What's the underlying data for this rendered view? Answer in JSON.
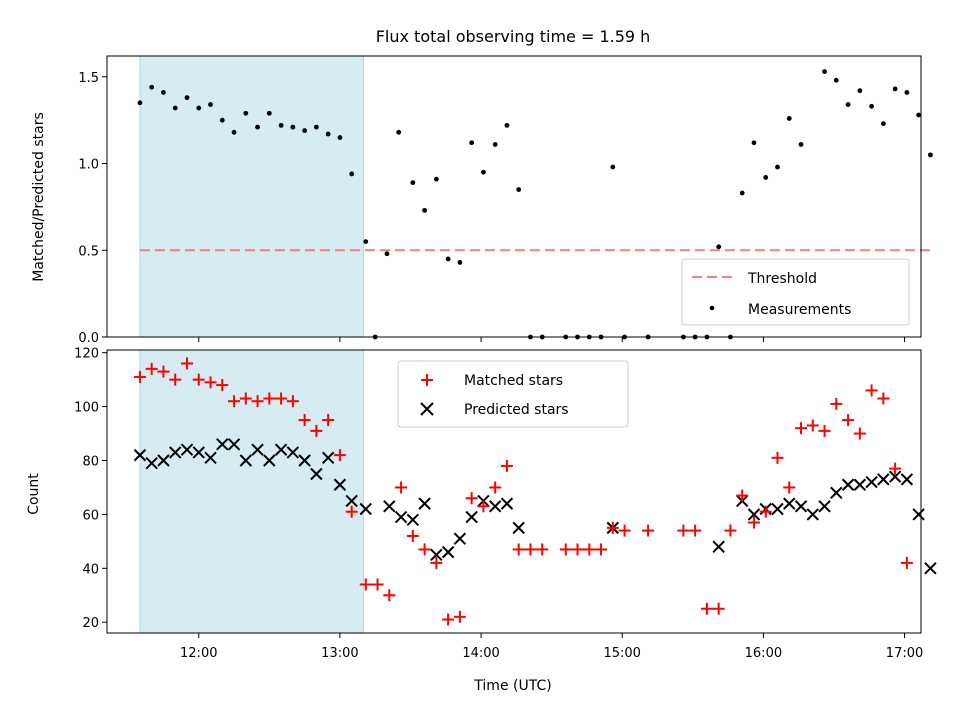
{
  "chart_data": [
    {
      "type": "scatter",
      "title": "Flux total observing time = 1.59 h",
      "ylabel": "Matched/Predicted stars",
      "xlabel": "",
      "xlim": [
        "11:21",
        "17:07"
      ],
      "ylim": [
        0,
        1.62
      ],
      "yticks": [
        "0.0",
        "0.5",
        "1.0",
        "1.5"
      ],
      "grid": false,
      "legend_position": "lower-right",
      "shaded_span": [
        "11:35",
        "13:10"
      ],
      "threshold": {
        "name": "Threshold",
        "value": 0.5,
        "style": "dashed",
        "color": "#f08080"
      },
      "series": [
        {
          "name": "Measurements",
          "color": "#000000",
          "marker": "dot",
          "points": [
            [
              "11:35",
              1.35
            ],
            [
              "11:40",
              1.44
            ],
            [
              "11:45",
              1.41
            ],
            [
              "11:50",
              1.32
            ],
            [
              "11:55",
              1.38
            ],
            [
              "12:00",
              1.32
            ],
            [
              "12:05",
              1.34
            ],
            [
              "12:10",
              1.25
            ],
            [
              "12:15",
              1.18
            ],
            [
              "12:20",
              1.29
            ],
            [
              "12:25",
              1.21
            ],
            [
              "12:30",
              1.29
            ],
            [
              "12:35",
              1.22
            ],
            [
              "12:40",
              1.21
            ],
            [
              "12:45",
              1.19
            ],
            [
              "12:50",
              1.21
            ],
            [
              "12:55",
              1.17
            ],
            [
              "13:00",
              1.15
            ],
            [
              "13:05",
              0.94
            ],
            [
              "13:11",
              0.55
            ],
            [
              "13:15",
              0.0
            ],
            [
              "13:20",
              0.48
            ],
            [
              "13:25",
              1.18
            ],
            [
              "13:31",
              0.89
            ],
            [
              "13:36",
              0.73
            ],
            [
              "13:41",
              0.91
            ],
            [
              "13:46",
              0.45
            ],
            [
              "13:51",
              0.43
            ],
            [
              "13:56",
              1.12
            ],
            [
              "14:01",
              0.95
            ],
            [
              "14:06",
              1.11
            ],
            [
              "14:11",
              1.22
            ],
            [
              "14:16",
              0.85
            ],
            [
              "14:21",
              0.0
            ],
            [
              "14:26",
              0.0
            ],
            [
              "14:36",
              0.0
            ],
            [
              "14:41",
              0.0
            ],
            [
              "14:46",
              0.0
            ],
            [
              "14:51",
              0.0
            ],
            [
              "14:56",
              0.98
            ],
            [
              "15:01",
              0.0
            ],
            [
              "15:11",
              0.0
            ],
            [
              "15:26",
              0.0
            ],
            [
              "15:31",
              0.0
            ],
            [
              "15:36",
              0.0
            ],
            [
              "15:41",
              0.52
            ],
            [
              "15:46",
              0.0
            ],
            [
              "15:51",
              0.83
            ],
            [
              "15:56",
              1.12
            ],
            [
              "16:01",
              0.92
            ],
            [
              "16:06",
              0.98
            ],
            [
              "16:11",
              1.26
            ],
            [
              "16:16",
              1.11
            ],
            [
              "16:26",
              1.53
            ],
            [
              "16:31",
              1.48
            ],
            [
              "16:36",
              1.34
            ],
            [
              "16:41",
              1.42
            ],
            [
              "16:46",
              1.33
            ],
            [
              "16:51",
              1.23
            ],
            [
              "16:56",
              1.43
            ],
            [
              "17:01",
              1.41
            ],
            [
              "17:06",
              1.28
            ],
            [
              "17:11",
              1.05
            ]
          ]
        }
      ]
    },
    {
      "type": "scatter",
      "title": "",
      "ylabel": "Count",
      "xlabel": "Time (UTC)",
      "xlim": [
        "11:21",
        "17:07"
      ],
      "ylim": [
        16,
        121
      ],
      "xticks": [
        "12:00",
        "13:00",
        "14:00",
        "15:00",
        "16:00",
        "17:00"
      ],
      "yticks": [
        "20",
        "40",
        "60",
        "80",
        "100",
        "120"
      ],
      "grid": false,
      "legend_position": "top-center",
      "shaded_span": [
        "11:35",
        "13:10"
      ],
      "series": [
        {
          "name": "Matched stars",
          "color": "#ff0000",
          "marker": "plus",
          "points": [
            [
              "11:35",
              111
            ],
            [
              "11:40",
              114
            ],
            [
              "11:45",
              113
            ],
            [
              "11:50",
              110
            ],
            [
              "11:55",
              116
            ],
            [
              "12:00",
              110
            ],
            [
              "12:05",
              109
            ],
            [
              "12:10",
              108
            ],
            [
              "12:15",
              102
            ],
            [
              "12:20",
              103
            ],
            [
              "12:25",
              102
            ],
            [
              "12:30",
              103
            ],
            [
              "12:35",
              103
            ],
            [
              "12:40",
              102
            ],
            [
              "12:45",
              95
            ],
            [
              "12:50",
              91
            ],
            [
              "12:55",
              95
            ],
            [
              "13:00",
              82
            ],
            [
              "13:05",
              61
            ],
            [
              "13:11",
              34
            ],
            [
              "13:16",
              34
            ],
            [
              "13:21",
              30
            ],
            [
              "13:26",
              70
            ],
            [
              "13:31",
              52
            ],
            [
              "13:36",
              47
            ],
            [
              "13:41",
              42
            ],
            [
              "13:46",
              21
            ],
            [
              "13:51",
              22
            ],
            [
              "13:56",
              66
            ],
            [
              "14:01",
              63
            ],
            [
              "14:06",
              70
            ],
            [
              "14:11",
              78
            ],
            [
              "14:16",
              47
            ],
            [
              "14:21",
              47
            ],
            [
              "14:26",
              47
            ],
            [
              "14:36",
              47
            ],
            [
              "14:41",
              47
            ],
            [
              "14:46",
              47
            ],
            [
              "14:51",
              47
            ],
            [
              "14:56",
              55
            ],
            [
              "15:01",
              54
            ],
            [
              "15:11",
              54
            ],
            [
              "15:26",
              54
            ],
            [
              "15:31",
              54
            ],
            [
              "15:36",
              25
            ],
            [
              "15:41",
              25
            ],
            [
              "15:46",
              54
            ],
            [
              "15:51",
              67
            ],
            [
              "15:56",
              57
            ],
            [
              "16:01",
              61
            ],
            [
              "16:06",
              81
            ],
            [
              "16:11",
              70
            ],
            [
              "16:16",
              92
            ],
            [
              "16:21",
              93
            ],
            [
              "16:26",
              91
            ],
            [
              "16:31",
              101
            ],
            [
              "16:36",
              95
            ],
            [
              "16:41",
              90
            ],
            [
              "16:46",
              106
            ],
            [
              "16:51",
              103
            ],
            [
              "16:56",
              77
            ],
            [
              "17:01",
              42
            ]
          ]
        },
        {
          "name": "Predicted stars",
          "color": "#000000",
          "marker": "x",
          "points": [
            [
              "11:35",
              82
            ],
            [
              "11:40",
              79
            ],
            [
              "11:45",
              80
            ],
            [
              "11:50",
              83
            ],
            [
              "11:55",
              84
            ],
            [
              "12:00",
              83
            ],
            [
              "12:05",
              81
            ],
            [
              "12:10",
              86
            ],
            [
              "12:15",
              86
            ],
            [
              "12:20",
              80
            ],
            [
              "12:25",
              84
            ],
            [
              "12:30",
              80
            ],
            [
              "12:35",
              84
            ],
            [
              "12:40",
              83
            ],
            [
              "12:45",
              80
            ],
            [
              "12:50",
              75
            ],
            [
              "12:55",
              81
            ],
            [
              "13:00",
              71
            ],
            [
              "13:05",
              65
            ],
            [
              "13:11",
              62
            ],
            [
              "13:21",
              63
            ],
            [
              "13:26",
              59
            ],
            [
              "13:31",
              58
            ],
            [
              "13:36",
              64
            ],
            [
              "13:41",
              45
            ],
            [
              "13:46",
              46
            ],
            [
              "13:51",
              51
            ],
            [
              "13:56",
              59
            ],
            [
              "14:01",
              65
            ],
            [
              "14:06",
              63
            ],
            [
              "14:11",
              64
            ],
            [
              "14:16",
              55
            ],
            [
              "14:56",
              55
            ],
            [
              "15:41",
              48
            ],
            [
              "15:51",
              65
            ],
            [
              "15:56",
              60
            ],
            [
              "16:01",
              62
            ],
            [
              "16:06",
              62
            ],
            [
              "16:11",
              64
            ],
            [
              "16:16",
              63
            ],
            [
              "16:21",
              60
            ],
            [
              "16:26",
              63
            ],
            [
              "16:31",
              68
            ],
            [
              "16:36",
              71
            ],
            [
              "16:41",
              71
            ],
            [
              "16:46",
              72
            ],
            [
              "16:51",
              73
            ],
            [
              "16:56",
              74
            ],
            [
              "17:01",
              73
            ],
            [
              "17:06",
              60
            ],
            [
              "17:11",
              40
            ]
          ]
        }
      ]
    }
  ]
}
